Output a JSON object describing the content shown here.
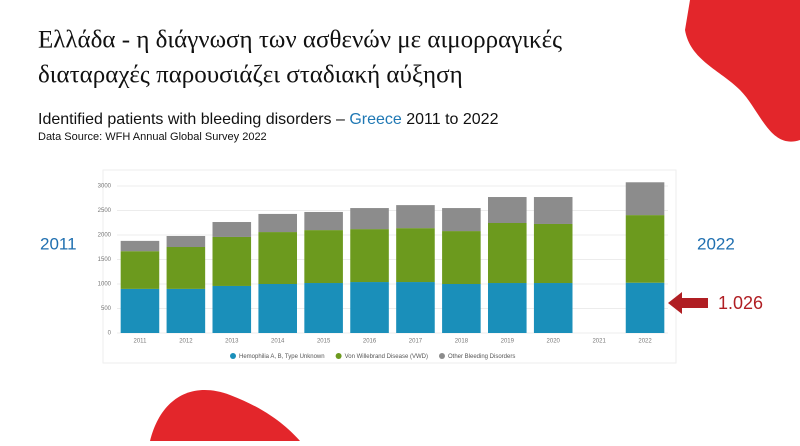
{
  "heading": {
    "title_line1": "Ελλάδα - η διάγνωση των ασθενών με αιμορραγικές",
    "title_line2": "διαταραχές παρουσιάζει σταδιακή αύξηση",
    "subtitle_start": "Identified patients with bleeding disorders –",
    "subtitle_highlight": "Greece",
    "subtitle_end": "2011 to 2022",
    "source": "Data Source: WFH Annual Global Survey 2022",
    "left_year": "2011",
    "right_year": "2022"
  },
  "chart_data": {
    "type": "stacked-bar",
    "categories": [
      "2011",
      "2012",
      "2013",
      "2014",
      "2015",
      "2016",
      "2017",
      "2018",
      "2019",
      "2020",
      "2021",
      "2022"
    ],
    "series": [
      {
        "name": "Hemophilia A, B, Type Unknown",
        "color": "#1a8fba",
        "values": [
          900,
          900,
          960,
          1000,
          1020,
          1040,
          1040,
          1000,
          1020,
          1020,
          null,
          1026
        ],
        "value_labels": [
          null,
          null,
          null,
          null,
          null,
          null,
          null,
          null,
          null,
          null,
          null,
          "1.026"
        ]
      },
      {
        "name": "Von Willebrand Disease (VWD)",
        "color": "#6c9a1e",
        "values": [
          770,
          855,
          1000,
          1060,
          1080,
          1080,
          1100,
          1080,
          1225,
          1205,
          null,
          1380
        ]
      },
      {
        "name": "Other Bleeding Disorders",
        "color": "#8c8c8c",
        "values": [
          210,
          225,
          305,
          370,
          370,
          430,
          470,
          470,
          530,
          550,
          null,
          670
        ]
      }
    ],
    "ylim": [
      0,
      3000
    ],
    "yticks": [
      0,
      500,
      1000,
      1500,
      2000,
      2500,
      3000
    ],
    "grid": true
  }
}
